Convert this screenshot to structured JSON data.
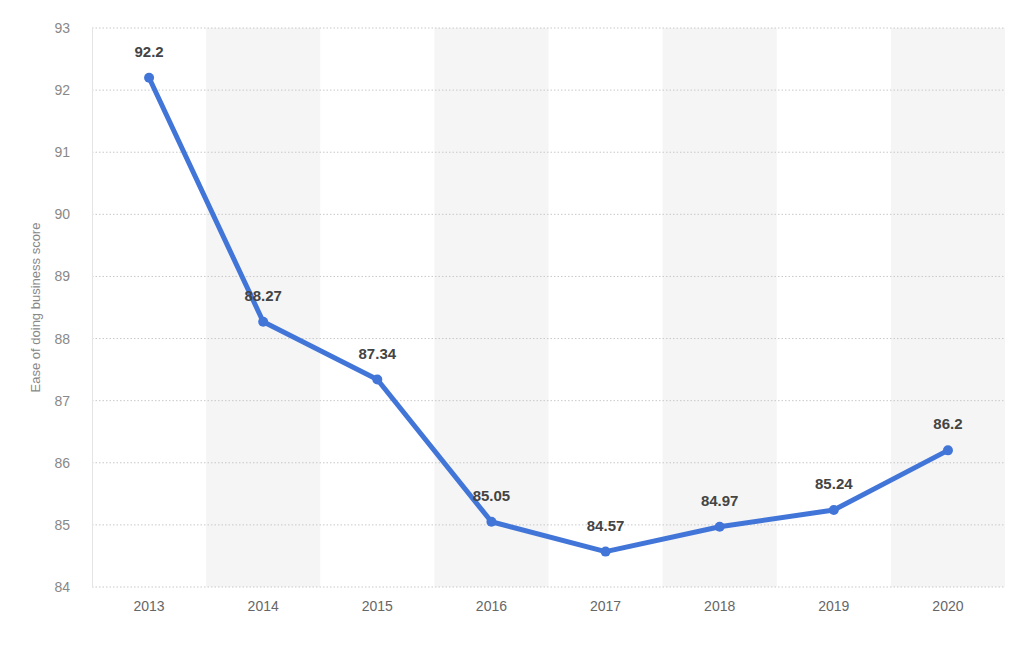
{
  "chart_data": {
    "type": "line",
    "y_label": "Ease of doing business score",
    "categories": [
      "2013",
      "2014",
      "2015",
      "2016",
      "2017",
      "2018",
      "2019",
      "2020"
    ],
    "values": [
      92.2,
      88.27,
      87.34,
      85.05,
      84.57,
      84.97,
      85.24,
      86.2
    ],
    "color": "#4275d8",
    "marker": "circle",
    "ylim": [
      84,
      93
    ],
    "yticks": [
      84,
      85,
      86,
      87,
      88,
      89,
      90,
      91,
      92,
      93
    ],
    "grid": true,
    "data_labels": true
  }
}
